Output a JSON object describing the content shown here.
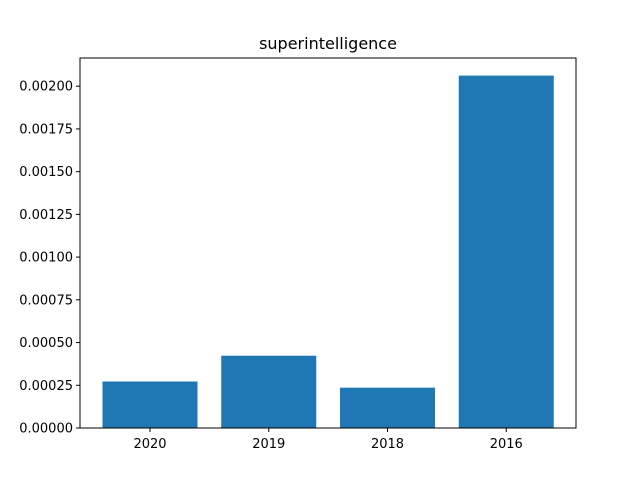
{
  "chart_data": {
    "type": "bar",
    "title": "superintelligence",
    "xlabel": "",
    "ylabel": "",
    "categories": [
      "2020",
      "2019",
      "2018",
      "2016"
    ],
    "values": [
      0.000272,
      0.000423,
      0.000236,
      0.002062
    ],
    "ylim": [
      0,
      0.002165
    ],
    "yticks": [
      0.0,
      0.00025,
      0.0005,
      0.00075,
      0.001,
      0.00125,
      0.0015,
      0.00175,
      0.002
    ],
    "ytick_labels": [
      "0.00000",
      "0.00025",
      "0.00050",
      "0.00075",
      "0.00100",
      "0.00125",
      "0.00150",
      "0.00175",
      "0.00200"
    ],
    "bar_color": "#1f77b4",
    "grid": false,
    "legend": "none"
  }
}
